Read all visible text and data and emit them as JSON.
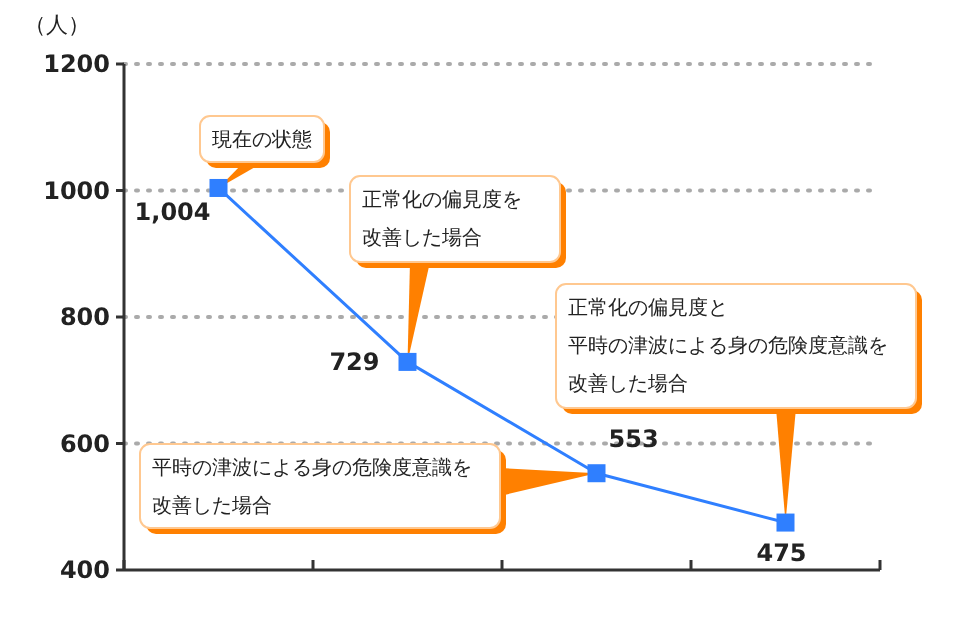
{
  "chart_data": {
    "type": "line",
    "ylabel": "（人）",
    "categories": [
      null,
      null,
      null,
      null
    ],
    "series": [
      {
        "color": "#2f7fff",
        "values": [
          1004,
          729,
          553,
          475
        ]
      }
    ],
    "value_labels": [
      "1,004",
      "729",
      "553",
      "475"
    ],
    "marker": "square",
    "line_style": "solid",
    "ylim": [
      400,
      1200
    ],
    "yticks": [
      400,
      600,
      800,
      1000,
      1200
    ],
    "grid": "y",
    "annotations": [
      "現在の状態",
      "正常化の偏見度を改善した場合",
      "平時の津波による身の危険度意識を改善した場合",
      "正常化の偏見度と平時の津波による身の危険度意識を改善した場合"
    ]
  }
}
